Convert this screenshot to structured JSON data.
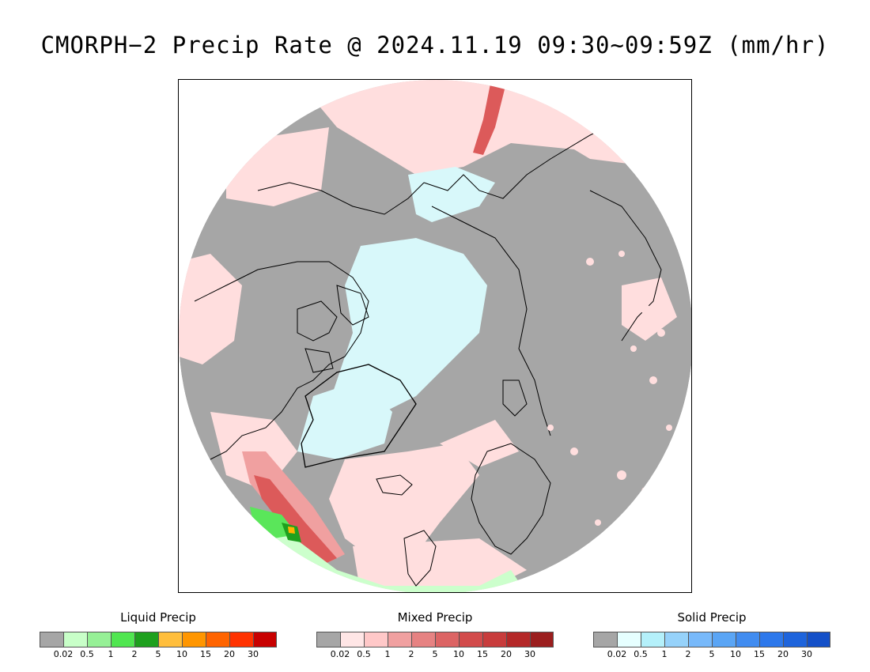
{
  "title": "CMORPH−2 Precip Rate @ 2024.11.19 09:30~09:59Z (mm/hr)",
  "map": {
    "projection": "polar-stereographic-north",
    "colors": {
      "no_precip": "#a6a6a6",
      "ocean_light_liquid": "#ffdede",
      "light_snow": "#d8f8fa",
      "moderate_mixed": "#f0a0a0",
      "heavy_mixed": "#dc5a5a",
      "liquid_light": "#ccffcc",
      "liquid_moderate": "#5ae65a",
      "liquid_heavy": "#1ea01e",
      "liquid_intense": "#ffb400",
      "coastline": "#000000"
    }
  },
  "legends": [
    {
      "title": "Liquid Precip",
      "colors": [
        "#a6a6a6",
        "#c8ffc8",
        "#96f096",
        "#50e650",
        "#1ea01e",
        "#ffbe3c",
        "#ff9600",
        "#ff6400",
        "#ff3200",
        "#c80000"
      ],
      "ticks": [
        "0.02",
        "0.5",
        "1",
        "2",
        "5",
        "10",
        "15",
        "20",
        "30"
      ]
    },
    {
      "title": "Mixed Precip",
      "colors": [
        "#a6a6a6",
        "#ffe6e6",
        "#ffc8c8",
        "#f0a0a0",
        "#e68282",
        "#dc6464",
        "#d24b4b",
        "#c83c3c",
        "#b42828",
        "#9b1e1e"
      ],
      "ticks": [
        "0.02",
        "0.5",
        "1",
        "2",
        "5",
        "10",
        "15",
        "20",
        "30"
      ]
    },
    {
      "title": "Solid Precip",
      "colors": [
        "#a6a6a6",
        "#e6ffff",
        "#b4f0fa",
        "#96d2fa",
        "#78b9fa",
        "#5aa5f5",
        "#418cf0",
        "#2d78eb",
        "#1e64dc",
        "#1450c8"
      ],
      "ticks": [
        "0.02",
        "0.5",
        "1",
        "2",
        "5",
        "10",
        "15",
        "20",
        "30"
      ]
    }
  ]
}
